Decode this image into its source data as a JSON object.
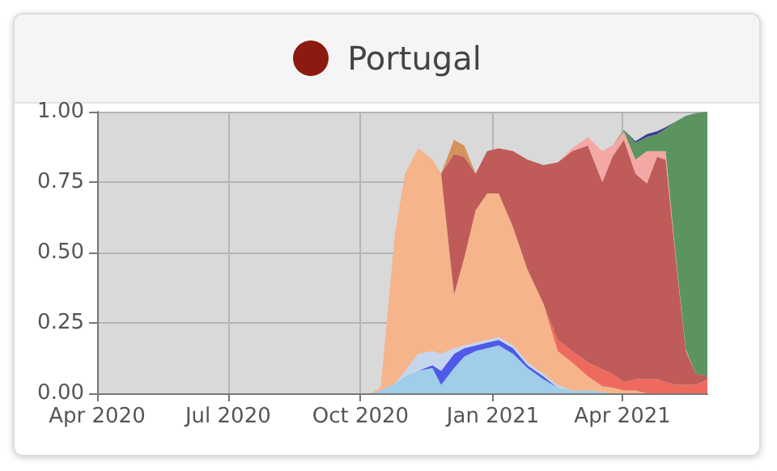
{
  "chart_data": {
    "type": "area",
    "title": "Portugal",
    "stacked": true,
    "grid": true,
    "x": [
      "2020-10-01",
      "2020-10-08",
      "2020-10-15",
      "2020-10-25",
      "2020-11-01",
      "2020-11-10",
      "2020-11-20",
      "2020-11-26",
      "2020-12-05",
      "2020-12-12",
      "2020-12-20",
      "2020-12-28",
      "2021-01-05",
      "2021-01-15",
      "2021-01-25",
      "2021-02-05",
      "2021-02-15",
      "2021-02-25",
      "2021-03-08",
      "2021-03-18",
      "2021-03-25",
      "2021-04-02",
      "2021-04-10",
      "2021-04-18",
      "2021-04-25",
      "2021-05-01",
      "2021-05-08",
      "2021-05-15",
      "2021-05-22",
      "2021-05-30"
    ],
    "xlim": [
      "2020-04-01",
      "2021-05-30"
    ],
    "xticks": [
      {
        "value": "2020-04-01",
        "label": "Apr 2020"
      },
      {
        "value": "2020-07-01",
        "label": "Jul 2020"
      },
      {
        "value": "2020-10-01",
        "label": "Oct 2020"
      },
      {
        "value": "2021-01-01",
        "label": "Jan 2021"
      },
      {
        "value": "2021-04-01",
        "label": "Apr 2021"
      }
    ],
    "ylim": [
      0,
      1
    ],
    "yticks": [
      {
        "value": 0,
        "label": "0.00"
      },
      {
        "value": 0.25,
        "label": "0.25"
      },
      {
        "value": 0.5,
        "label": "0.50"
      },
      {
        "value": 0.75,
        "label": "0.75"
      },
      {
        "value": 1,
        "label": "1.00"
      }
    ],
    "series": [
      {
        "color": "#a0cde9",
        "values": [
          0,
          0,
          0.01,
          0.035,
          0.06,
          0.08,
          0.09,
          0.03,
          0.09,
          0.13,
          0.15,
          0.16,
          0.17,
          0.14,
          0.09,
          0.05,
          0.02,
          0.01,
          0.01,
          0.005,
          0,
          null,
          null,
          null,
          null,
          null,
          null,
          null,
          null,
          null
        ]
      },
      {
        "color": "#4e5ae8",
        "values": [
          null,
          null,
          null,
          null,
          null,
          0,
          0.01,
          0.05,
          0.05,
          0.03,
          0.02,
          0.02,
          0.02,
          0.02,
          0.01,
          0.01,
          0,
          null,
          null,
          null,
          null,
          null,
          null,
          null,
          null,
          null,
          null,
          null,
          null,
          null
        ]
      },
      {
        "color": "#c6d6ee",
        "values": [
          null,
          null,
          null,
          0,
          0.02,
          0.06,
          0.05,
          0.06,
          0.02,
          0.01,
          0.01,
          0.01,
          0.01,
          0.01,
          0.01,
          0.01,
          0.01,
          0,
          null,
          null,
          null,
          null,
          null,
          null,
          null,
          null,
          null,
          null,
          null,
          null
        ]
      },
      {
        "color": "#f6b48a",
        "values": [
          null,
          0,
          0.01,
          0.535,
          0.7,
          0.73,
          0.68,
          0.64,
          0.19,
          0.31,
          0.47,
          0.52,
          0.51,
          0.42,
          0.33,
          0.25,
          0.12,
          0.1,
          0.05,
          0.02,
          0.02,
          0.01,
          0.01,
          0,
          null,
          null,
          null,
          null,
          null,
          null
        ]
      },
      {
        "color": "#ef6a5e",
        "values": [
          null,
          null,
          null,
          null,
          null,
          null,
          null,
          null,
          null,
          null,
          null,
          null,
          null,
          null,
          null,
          0,
          0.04,
          0.04,
          0.05,
          0.06,
          0.05,
          0.03,
          0.04,
          0.05,
          0.05,
          0.04,
          0.03,
          0.03,
          0.03,
          0.05
        ]
      },
      {
        "color": "#bf5b58",
        "values": [
          null,
          null,
          null,
          null,
          null,
          null,
          null,
          0,
          0.5,
          0.36,
          0.13,
          0.15,
          0.16,
          0.27,
          0.39,
          0.49,
          0.63,
          0.71,
          0.77,
          0.665,
          0.77,
          0.86,
          0.73,
          0.695,
          0.79,
          0.79,
          0.45,
          0.12,
          0.04,
          0.01
        ]
      },
      {
        "color": "#d4935a",
        "values": [
          null,
          null,
          null,
          null,
          null,
          null,
          null,
          0,
          0.05,
          0.04,
          0,
          null,
          null,
          null,
          null,
          null,
          null,
          null,
          null,
          null,
          null,
          null,
          null,
          null,
          null,
          null,
          null,
          null,
          null,
          null
        ]
      },
      {
        "color": "#f3a8a6",
        "values": [
          null,
          null,
          null,
          null,
          null,
          null,
          null,
          null,
          null,
          null,
          null,
          null,
          null,
          null,
          null,
          null,
          0,
          0.01,
          0.03,
          0.11,
          0.04,
          0.03,
          0.05,
          0.115,
          0.02,
          0.03,
          0.01,
          0.005,
          0,
          null
        ]
      },
      {
        "color": "#5c9460",
        "values": [
          null,
          null,
          null,
          null,
          null,
          null,
          null,
          null,
          null,
          null,
          null,
          null,
          null,
          null,
          null,
          null,
          null,
          null,
          null,
          null,
          0,
          0.005,
          0.06,
          0.05,
          0.06,
          0.08,
          0.475,
          0.83,
          0.925,
          0.94
        ]
      },
      {
        "color": "#3a3a90",
        "values": [
          null,
          null,
          null,
          null,
          null,
          null,
          null,
          null,
          null,
          null,
          null,
          null,
          null,
          null,
          null,
          null,
          null,
          null,
          null,
          null,
          null,
          0,
          0.005,
          0.01,
          0.01,
          0.005,
          0,
          null,
          null,
          null
        ]
      }
    ]
  }
}
